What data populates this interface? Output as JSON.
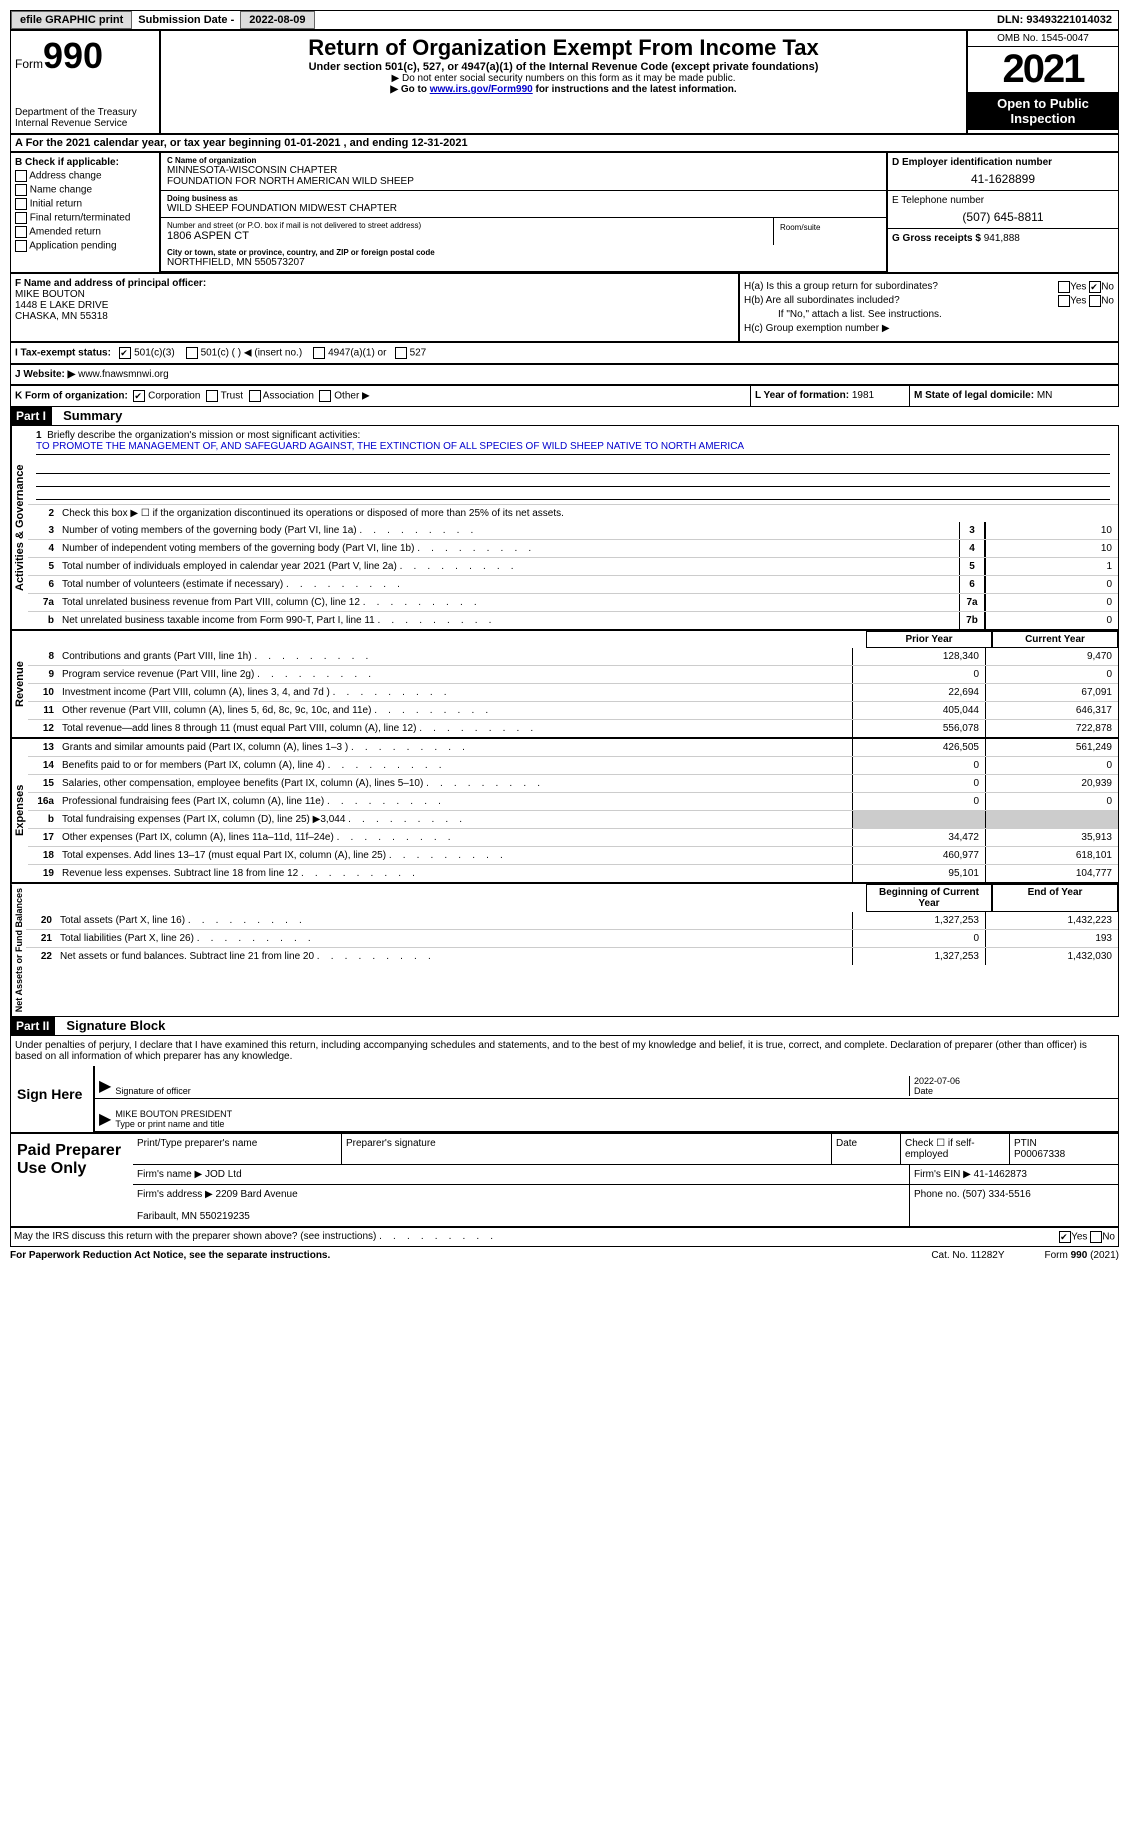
{
  "topbar": {
    "efile": "efile GRAPHIC print",
    "sub_label": "Submission Date - ",
    "sub_date": "2022-08-09",
    "dln": "DLN: 93493221014032"
  },
  "header": {
    "form": "Form",
    "num": "990",
    "dept": "Department of the Treasury\nInternal Revenue Service",
    "title": "Return of Organization Exempt From Income Tax",
    "subtitle": "Under section 501(c), 527, or 4947(a)(1) of the Internal Revenue Code (except private foundations)",
    "note1": "▶ Do not enter social security numbers on this form as it may be made public.",
    "note2_pre": "▶ Go to ",
    "note2_link": "www.irs.gov/Form990",
    "note2_post": " for instructions and the latest information.",
    "omb": "OMB No. 1545-0047",
    "year": "2021",
    "open": "Open to Public Inspection"
  },
  "sectionA": "A For the 2021 calendar year, or tax year beginning 01-01-2021    , and ending 12-31-2021",
  "colB": {
    "label": "B Check if applicable:",
    "opts": [
      "Address change",
      "Name change",
      "Initial return",
      "Final return/terminated",
      "Amended return",
      "Application pending"
    ]
  },
  "colC": {
    "name_lbl": "C Name of organization",
    "name": "MINNESOTA-WISCONSIN CHAPTER\nFOUNDATION FOR NORTH AMERICAN WILD SHEEP",
    "dba_lbl": "Doing business as",
    "dba": "WILD SHEEP FOUNDATION MIDWEST CHAPTER",
    "addr_lbl": "Number and street (or P.O. box if mail is not delivered to street address)",
    "addr": "1806 ASPEN CT",
    "room_lbl": "Room/suite",
    "city_lbl": "City or town, state or province, country, and ZIP or foreign postal code",
    "city": "NORTHFIELD, MN  550573207"
  },
  "colD": {
    "ein_lbl": "D Employer identification number",
    "ein": "41-1628899",
    "tel_lbl": "E Telephone number",
    "tel": "(507) 645-8811",
    "gross_lbl": "G Gross receipts $ ",
    "gross": "941,888"
  },
  "colF": {
    "lbl": "F Name and address of principal officer:",
    "name": "MIKE BOUTON",
    "addr": "1448 E LAKE DRIVE\nCHASKA, MN  55318"
  },
  "colH": {
    "ha": "H(a)  Is this a group return for subordinates?",
    "hb": "H(b)  Are all subordinates included?",
    "hb_note": "If \"No,\" attach a list. See instructions.",
    "hc": "H(c)  Group exemption number ▶"
  },
  "rowI": {
    "lbl": "I  Tax-exempt status:",
    "opts": [
      "501(c)(3)",
      "501(c) (  ) ◀ (insert no.)",
      "4947(a)(1) or",
      "527"
    ]
  },
  "rowJ": {
    "lbl": "J  Website: ▶",
    "val": " www.fnawsmnwi.org"
  },
  "rowK": {
    "k1": "K Form of organization:",
    "opts": [
      "Corporation",
      "Trust",
      "Association",
      "Other ▶"
    ],
    "k2_lbl": "L Year of formation: ",
    "k2_val": "1981",
    "k3_lbl": "M State of legal domicile: ",
    "k3_val": "MN"
  },
  "part1": {
    "header": "Part I",
    "title": "Summary",
    "tab1": "Activities & Governance",
    "tab2": "Revenue",
    "tab3": "Expenses",
    "tab4": "Net Assets or Fund Balances",
    "line1_lbl": "Briefly describe the organization's mission or most significant activities:",
    "line1_val": "TO PROMOTE THE MANAGEMENT OF, AND SAFEGUARD AGAINST, THE EXTINCTION OF ALL SPECIES OF WILD SHEEP NATIVE TO NORTH AMERICA",
    "line2": "Check this box ▶ ☐ if the organization discontinued its operations or disposed of more than 25% of its net assets.",
    "lines": [
      {
        "n": "3",
        "t": "Number of voting members of the governing body (Part VI, line 1a)",
        "b": "3",
        "v": "10"
      },
      {
        "n": "4",
        "t": "Number of independent voting members of the governing body (Part VI, line 1b)",
        "b": "4",
        "v": "10"
      },
      {
        "n": "5",
        "t": "Total number of individuals employed in calendar year 2021 (Part V, line 2a)",
        "b": "5",
        "v": "1"
      },
      {
        "n": "6",
        "t": "Total number of volunteers (estimate if necessary)",
        "b": "6",
        "v": "0"
      },
      {
        "n": "7a",
        "t": "Total unrelated business revenue from Part VIII, column (C), line 12",
        "b": "7a",
        "v": "0"
      },
      {
        "n": "b",
        "t": "Net unrelated business taxable income from Form 990-T, Part I, line 11",
        "b": "7b",
        "v": "0"
      }
    ],
    "prior_hdr": "Prior Year",
    "curr_hdr": "Current Year",
    "rev": [
      {
        "n": "8",
        "t": "Contributions and grants (Part VIII, line 1h)",
        "p": "128,340",
        "c": "9,470"
      },
      {
        "n": "9",
        "t": "Program service revenue (Part VIII, line 2g)",
        "p": "0",
        "c": "0"
      },
      {
        "n": "10",
        "t": "Investment income (Part VIII, column (A), lines 3, 4, and 7d )",
        "p": "22,694",
        "c": "67,091"
      },
      {
        "n": "11",
        "t": "Other revenue (Part VIII, column (A), lines 5, 6d, 8c, 9c, 10c, and 11e)",
        "p": "405,044",
        "c": "646,317"
      },
      {
        "n": "12",
        "t": "Total revenue—add lines 8 through 11 (must equal Part VIII, column (A), line 12)",
        "p": "556,078",
        "c": "722,878"
      }
    ],
    "exp": [
      {
        "n": "13",
        "t": "Grants and similar amounts paid (Part IX, column (A), lines 1–3 )",
        "p": "426,505",
        "c": "561,249"
      },
      {
        "n": "14",
        "t": "Benefits paid to or for members (Part IX, column (A), line 4)",
        "p": "0",
        "c": "0"
      },
      {
        "n": "15",
        "t": "Salaries, other compensation, employee benefits (Part IX, column (A), lines 5–10)",
        "p": "0",
        "c": "20,939"
      },
      {
        "n": "16a",
        "t": "Professional fundraising fees (Part IX, column (A), line 11e)",
        "p": "0",
        "c": "0"
      },
      {
        "n": "b",
        "t": "Total fundraising expenses (Part IX, column (D), line 25) ▶3,044",
        "p": "",
        "c": "",
        "shaded": true
      },
      {
        "n": "17",
        "t": "Other expenses (Part IX, column (A), lines 11a–11d, 11f–24e)",
        "p": "34,472",
        "c": "35,913"
      },
      {
        "n": "18",
        "t": "Total expenses. Add lines 13–17 (must equal Part IX, column (A), line 25)",
        "p": "460,977",
        "c": "618,101"
      },
      {
        "n": "19",
        "t": "Revenue less expenses. Subtract line 18 from line 12",
        "p": "95,101",
        "c": "104,777"
      }
    ],
    "beg_hdr": "Beginning of Current Year",
    "end_hdr": "End of Year",
    "net": [
      {
        "n": "20",
        "t": "Total assets (Part X, line 16)",
        "p": "1,327,253",
        "c": "1,432,223"
      },
      {
        "n": "21",
        "t": "Total liabilities (Part X, line 26)",
        "p": "0",
        "c": "193"
      },
      {
        "n": "22",
        "t": "Net assets or fund balances. Subtract line 21 from line 20",
        "p": "1,327,253",
        "c": "1,432,030"
      }
    ]
  },
  "part2": {
    "header": "Part II",
    "title": "Signature Block",
    "decl": "Under penalties of perjury, I declare that I have examined this return, including accompanying schedules and statements, and to the best of my knowledge and belief, it is true, correct, and complete. Declaration of preparer (other than officer) is based on all information of which preparer has any knowledge.",
    "sign_here": "Sign Here",
    "sig_officer": "Signature of officer",
    "sig_date": "2022-07-06",
    "date_lbl": "Date",
    "name_title": "MIKE BOUTON  PRESIDENT",
    "name_title_lbl": "Type or print name and title",
    "paid": "Paid Preparer Use Only",
    "prep_name_lbl": "Print/Type preparer's name",
    "prep_sig_lbl": "Preparer's signature",
    "check_self": "Check ☐ if self-employed",
    "ptin_lbl": "PTIN",
    "ptin": "P00067338",
    "firm_name_lbl": "Firm's name    ▶ ",
    "firm_name": "JOD Ltd",
    "firm_ein_lbl": "Firm's EIN ▶ ",
    "firm_ein": "41-1462873",
    "firm_addr_lbl": "Firm's address ▶ ",
    "firm_addr": "2209 Bard Avenue\n\nFaribault, MN  550219235",
    "phone_lbl": "Phone no. ",
    "phone": "(507) 334-5516",
    "may_discuss": "May the IRS discuss this return with the preparer shown above? (see instructions)"
  },
  "footer": {
    "f1": "For Paperwork Reduction Act Notice, see the separate instructions.",
    "f2": "Cat. No. 11282Y",
    "f3": "Form 990 (2021)"
  }
}
